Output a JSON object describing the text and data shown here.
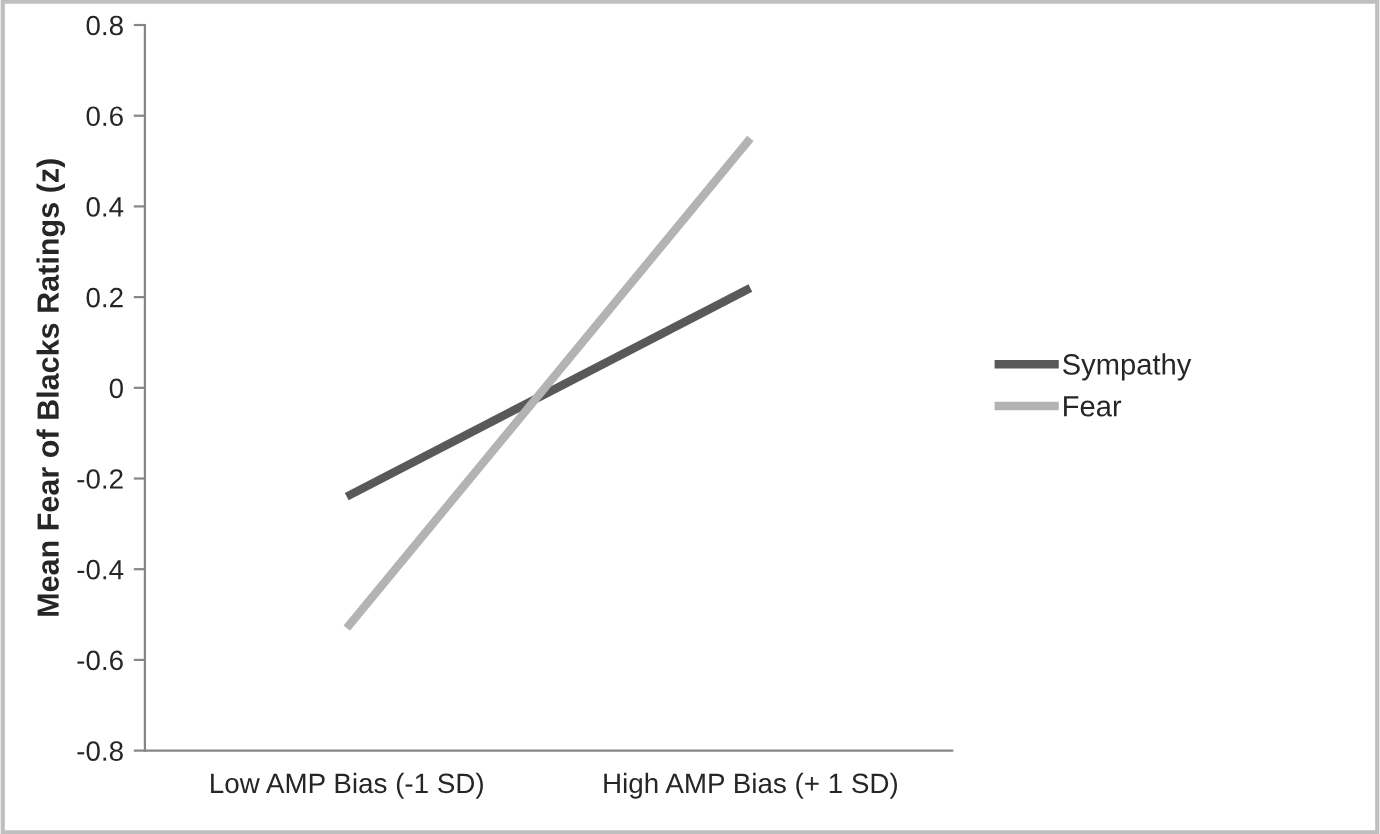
{
  "chart_data": {
    "type": "line",
    "ylabel": "Mean Fear of Blacks Ratings (z)",
    "categories": [
      "Low AMP Bias (-1 SD)",
      "High AMP Bias (+ 1 SD)"
    ],
    "series": [
      {
        "name": "Sympathy",
        "color": "#595959",
        "values": [
          -0.24,
          0.22
        ]
      },
      {
        "name": "Fear",
        "color": "#b3b3b3",
        "values": [
          -0.53,
          0.55
        ]
      }
    ],
    "ylim": [
      -0.8,
      0.8
    ],
    "yticks": [
      -0.8,
      -0.6,
      -0.4,
      -0.2,
      0,
      0.2,
      0.4,
      0.6,
      0.8
    ],
    "grid": false,
    "legend": "right",
    "marker": "none",
    "line_style": "solid"
  }
}
